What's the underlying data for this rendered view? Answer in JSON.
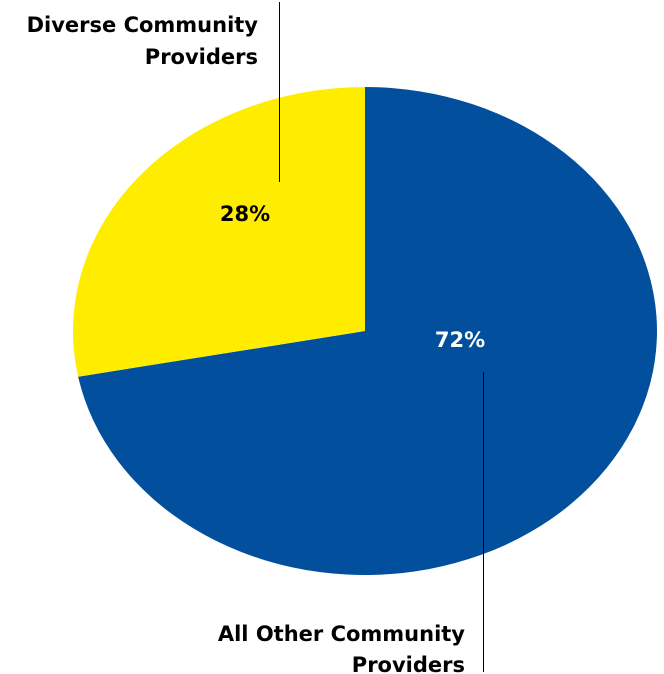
{
  "chart_data": {
    "type": "pie",
    "title": "",
    "slices": [
      {
        "label_lines": [
          "All Other Community",
          "Providers"
        ],
        "value": 72,
        "value_label": "72%",
        "color": "#02509D",
        "value_label_color": "#ffffff"
      },
      {
        "label_lines": [
          "Diverse Community",
          "Providers"
        ],
        "value": 28,
        "value_label": "28%",
        "color": "#FFED00",
        "value_label_color": "#000000"
      }
    ],
    "start_angle_deg": 0,
    "direction": "clockwise"
  }
}
